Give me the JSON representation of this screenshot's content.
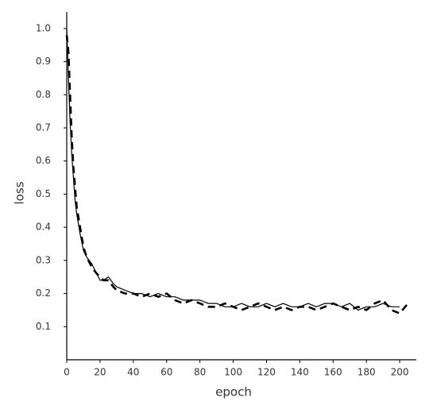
{
  "chart_data": {
    "type": "line",
    "xlabel": "epoch",
    "ylabel": "loss",
    "x": [
      0,
      1,
      2,
      3,
      4,
      5,
      6,
      8,
      10,
      12,
      15,
      18,
      20,
      22,
      25,
      28,
      30,
      35,
      40,
      45,
      50,
      55,
      60,
      65,
      70,
      75,
      80,
      85,
      90,
      95,
      100,
      105,
      110,
      115,
      120,
      125,
      130,
      135,
      140,
      145,
      150,
      155,
      160,
      165,
      170,
      175,
      180,
      185,
      190,
      195,
      200,
      205
    ],
    "series": [
      {
        "color": "#000000",
        "line_style": "solid",
        "values": [
          1.0,
          0.85,
          0.72,
          0.62,
          0.55,
          0.48,
          0.44,
          0.38,
          0.33,
          0.31,
          0.29,
          0.26,
          0.24,
          0.24,
          0.25,
          0.23,
          0.22,
          0.21,
          0.2,
          0.2,
          0.19,
          0.2,
          0.19,
          0.19,
          0.18,
          0.18,
          0.18,
          0.17,
          0.17,
          0.16,
          0.16,
          0.17,
          0.16,
          0.16,
          0.17,
          0.16,
          0.17,
          0.16,
          0.16,
          0.17,
          0.16,
          0.17,
          0.17,
          0.16,
          0.17,
          0.15,
          0.16,
          0.16,
          0.17,
          0.16,
          0.16,
          null
        ]
      },
      {
        "color": "#000000",
        "line_style": "dashed",
        "values": [
          0.98,
          0.93,
          0.8,
          0.67,
          0.58,
          0.52,
          0.46,
          0.4,
          0.34,
          0.31,
          0.28,
          0.26,
          0.25,
          0.24,
          0.24,
          0.22,
          0.21,
          0.2,
          0.2,
          0.19,
          0.2,
          0.19,
          0.2,
          0.18,
          0.17,
          0.18,
          0.17,
          0.16,
          0.16,
          0.17,
          0.16,
          0.15,
          0.16,
          0.17,
          0.16,
          0.15,
          0.16,
          0.15,
          0.16,
          0.16,
          0.15,
          0.16,
          0.17,
          0.16,
          0.15,
          0.16,
          0.15,
          0.17,
          0.18,
          0.15,
          0.14,
          0.17
        ]
      }
    ],
    "xlim": [
      0,
      210
    ],
    "ylim": [
      0,
      1.05
    ],
    "xticks": [
      0,
      20,
      40,
      60,
      80,
      100,
      120,
      140,
      160,
      180,
      200
    ],
    "yticks": [
      0.1,
      0.2,
      0.3,
      0.4,
      0.5,
      0.6,
      0.7,
      0.8,
      0.9,
      {
        "value": 1,
        "label": "1.0"
      }
    ]
  }
}
